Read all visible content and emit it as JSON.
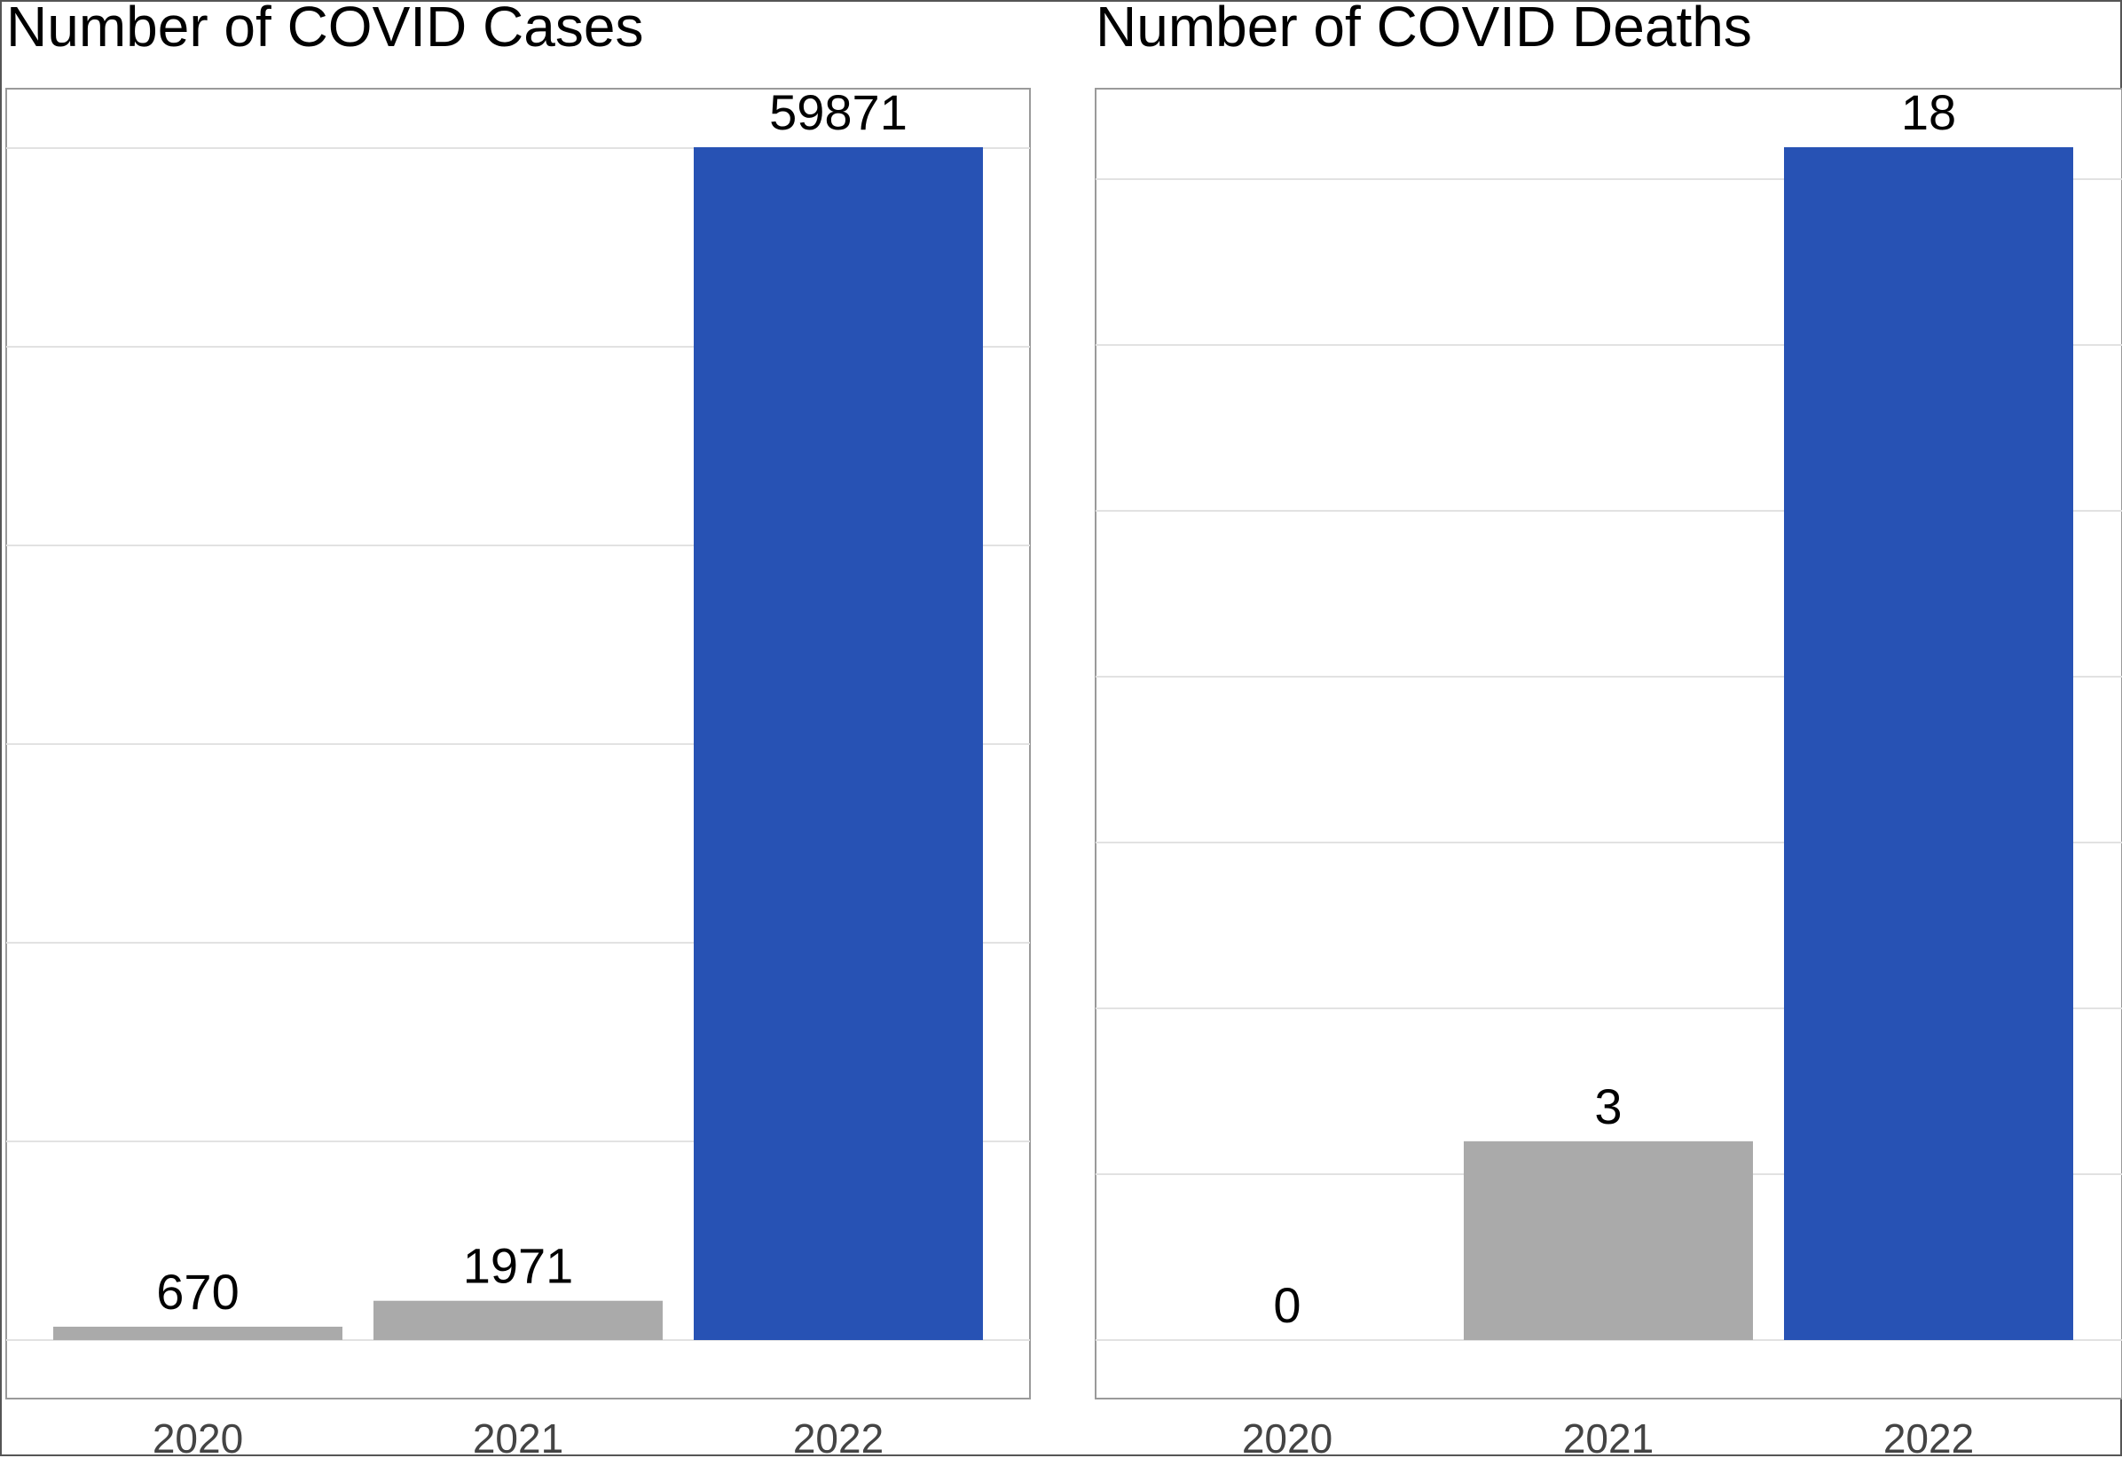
{
  "chart_data": [
    {
      "type": "bar",
      "title": "Number of COVID Cases",
      "categories": [
        "2020",
        "2021",
        "2022"
      ],
      "values": [
        670,
        1971,
        59871
      ],
      "value_labels": [
        "670",
        "1971",
        "59871"
      ],
      "ylim": [
        0,
        60000
      ],
      "grid": true,
      "colors": [
        "#aaaaaa",
        "#aaaaaa",
        "#2752b4"
      ]
    },
    {
      "type": "bar",
      "title": "Number of COVID Deaths",
      "categories": [
        "2020",
        "2021",
        "2022"
      ],
      "values": [
        0,
        3,
        18
      ],
      "value_labels": [
        "0",
        "3",
        "18"
      ],
      "ylim": [
        0,
        17.5
      ],
      "grid": true,
      "colors": [
        "#aaaaaa",
        "#aaaaaa",
        "#2752b4"
      ]
    }
  ]
}
